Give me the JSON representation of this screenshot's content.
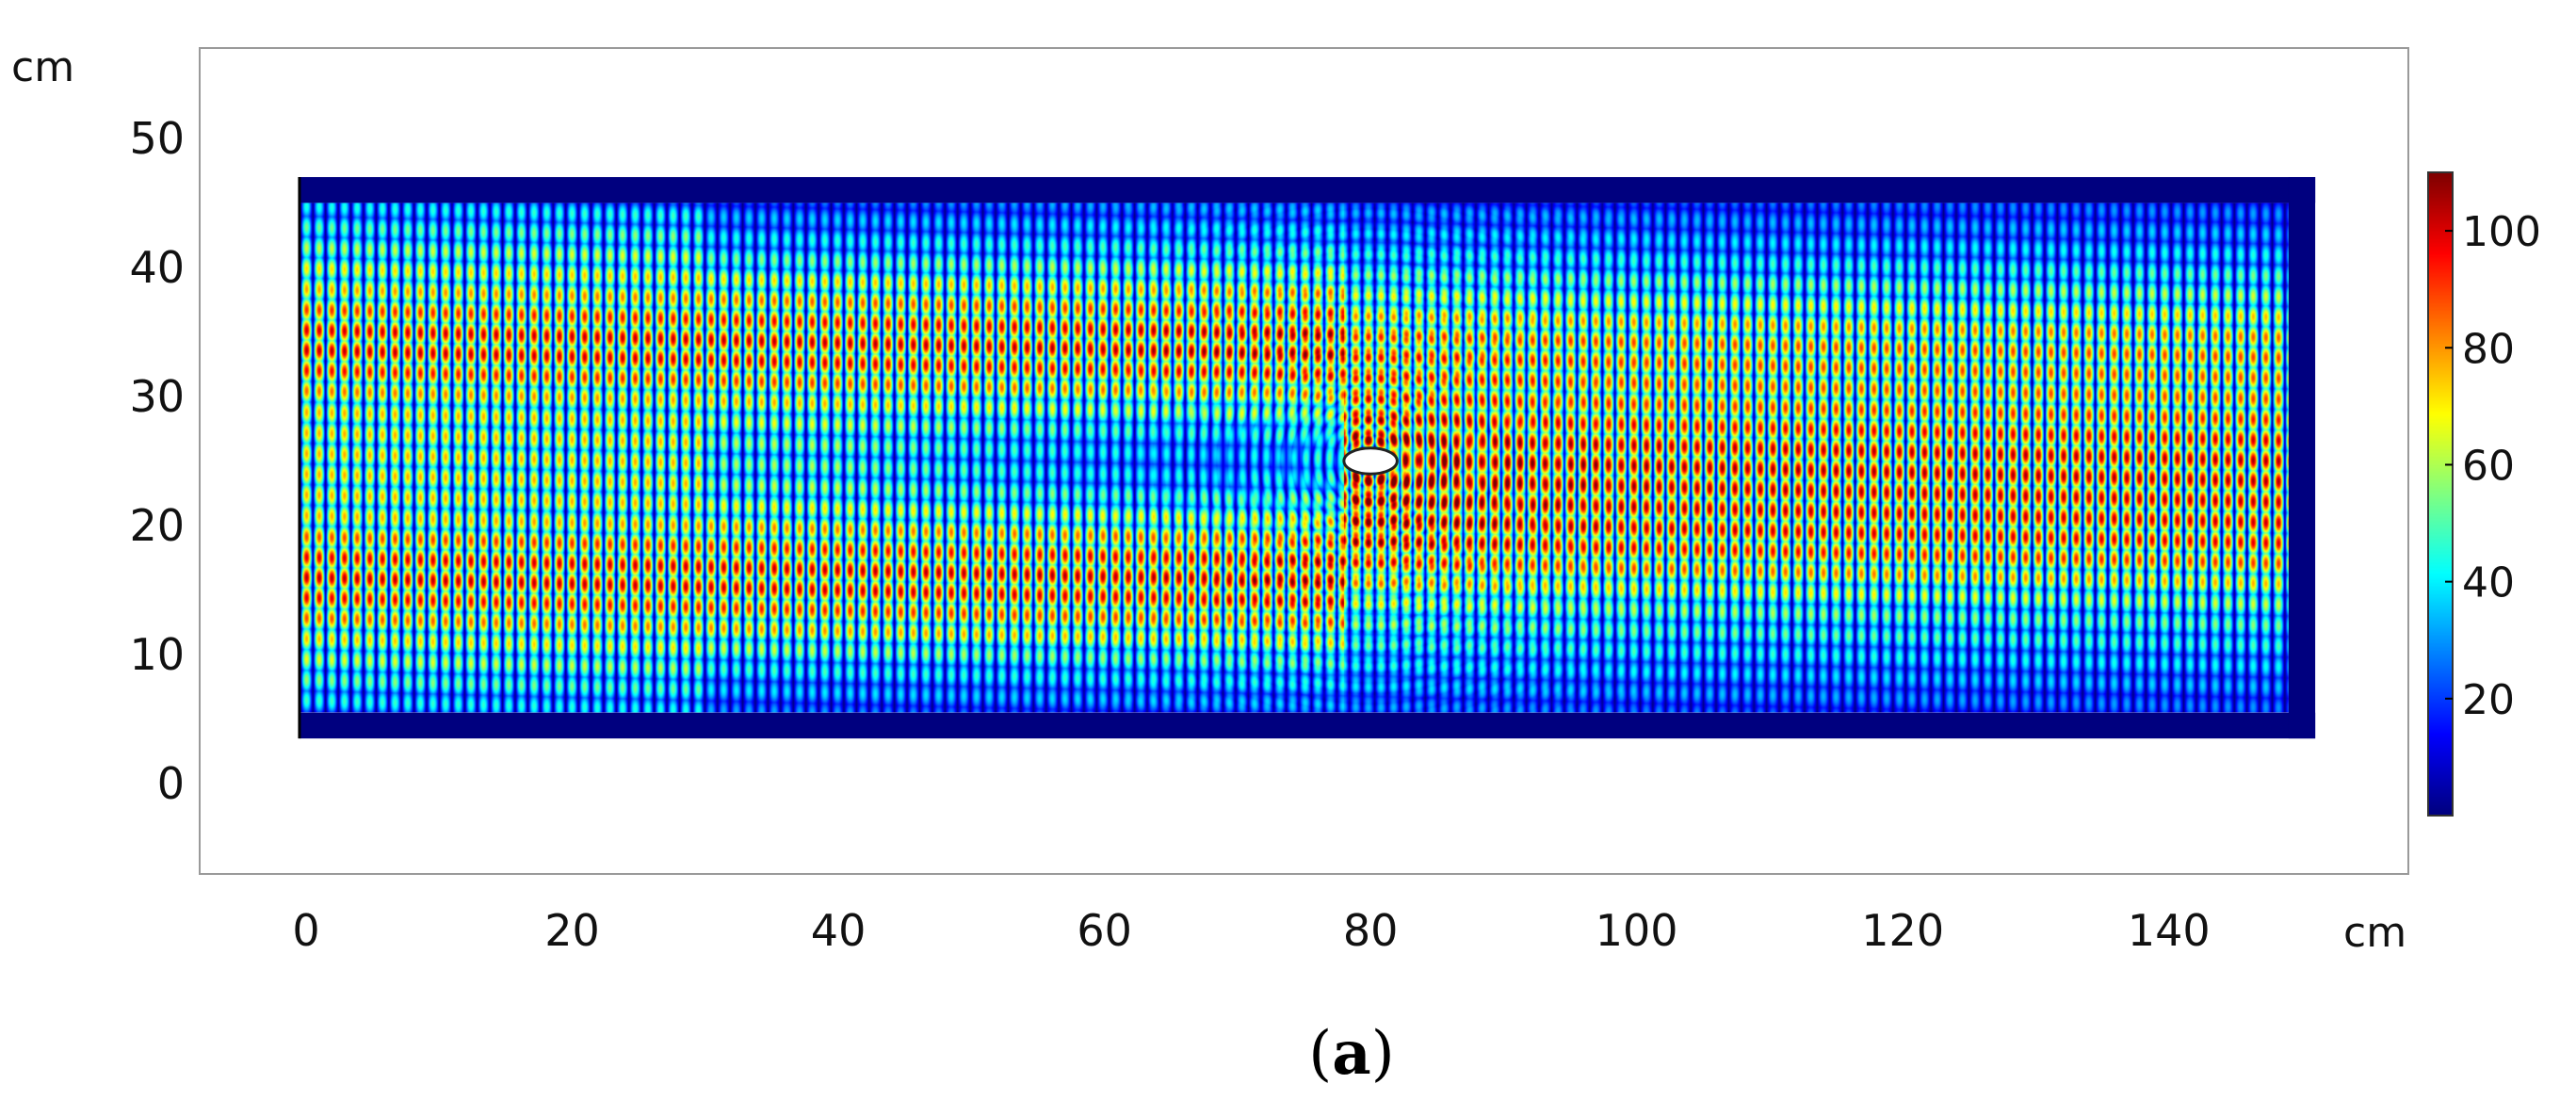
{
  "chart_data": {
    "type": "heatmap",
    "title": "",
    "x_unit": "cm",
    "y_unit": "cm",
    "xlim": [
      -8,
      158
    ],
    "ylim": [
      -7,
      57
    ],
    "x_ticks": [
      0,
      20,
      40,
      60,
      80,
      100,
      120,
      140
    ],
    "y_ticks": [
      0,
      10,
      20,
      30,
      40,
      50
    ],
    "domain_x": [
      -0.5,
      151
    ],
    "domain_y": [
      3.5,
      47
    ],
    "wall_thickness": 2,
    "obstacle": {
      "shape": "ellipse",
      "center": [
        80,
        25
      ],
      "rx": 2,
      "ry": 1
    },
    "colorbar": {
      "min": 0,
      "max": 110,
      "ticks": [
        20,
        40,
        60,
        80,
        100
      ],
      "colormap": [
        "#00007f",
        "#0000ff",
        "#0080ff",
        "#00ffff",
        "#80ff80",
        "#ffff00",
        "#ff8000",
        "#ff0000",
        "#7f0000"
      ]
    },
    "grid": false,
    "legend": "colorbar-right"
  },
  "caption": {
    "open": "(",
    "letter": "a",
    "close": ")"
  }
}
